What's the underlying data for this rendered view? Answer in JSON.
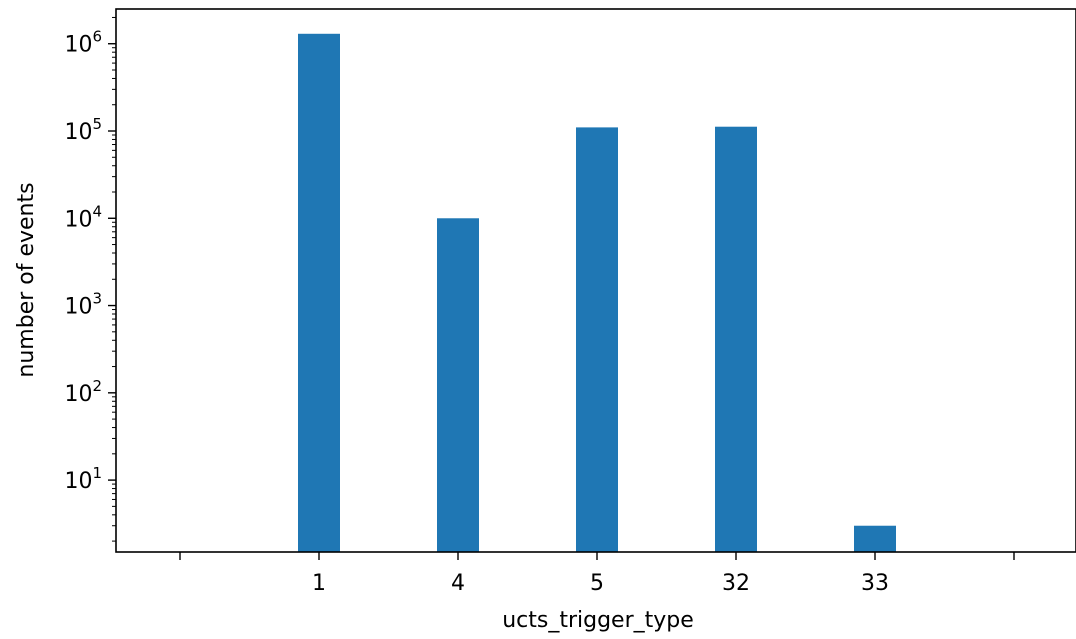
{
  "chart_data": {
    "type": "bar",
    "xlabel": "ucts_trigger_type",
    "ylabel": "number of events",
    "yscale": "log",
    "ylim": [
      1.5,
      2500000
    ],
    "categories": [
      "1",
      "4",
      "5",
      "32",
      "33"
    ],
    "values": [
      1300000,
      10000,
      110000,
      112000,
      3
    ],
    "y_ticks": [
      {
        "base": "10",
        "exp": "1",
        "value": 10
      },
      {
        "base": "10",
        "exp": "2",
        "value": 100
      },
      {
        "base": "10",
        "exp": "3",
        "value": 1000
      },
      {
        "base": "10",
        "exp": "4",
        "value": 10000
      },
      {
        "base": "10",
        "exp": "5",
        "value": 100000
      },
      {
        "base": "10",
        "exp": "6",
        "value": 1000000
      }
    ],
    "bar_color": "#1f77b4",
    "grid": false,
    "legend": "none"
  }
}
